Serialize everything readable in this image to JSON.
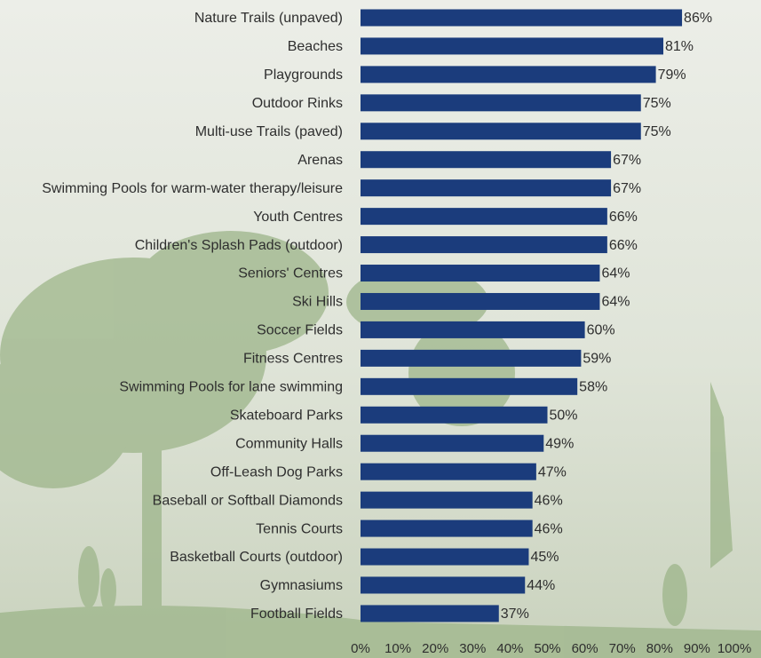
{
  "chart_data": {
    "type": "bar",
    "categories": [
      "Nature Trails (unpaved)",
      "Beaches",
      "Playgrounds",
      "Outdoor Rinks",
      "Multi-use Trails (paved)",
      "Arenas",
      "Swimming Pools for warm-water therapy/leisure",
      "Youth Centres",
      "Children's Splash Pads (outdoor)",
      "Seniors' Centres",
      "Ski Hills",
      "Soccer Fields",
      "Fitness Centres",
      "Swimming Pools for lane swimming",
      "Skateboard Parks",
      "Community Halls",
      "Off-Leash Dog Parks",
      "Baseball or Softball Diamonds",
      "Tennis Courts",
      "Basketball Courts (outdoor)",
      "Gymnasiums",
      "Football Fields"
    ],
    "values": [
      86,
      81,
      79,
      75,
      75,
      67,
      67,
      66,
      66,
      64,
      64,
      60,
      59,
      58,
      50,
      49,
      47,
      46,
      46,
      45,
      44,
      37
    ],
    "value_labels": [
      "86%",
      "81%",
      "79%",
      "75%",
      "75%",
      "67%",
      "67%",
      "66%",
      "66%",
      "64%",
      "64%",
      "60%",
      "59%",
      "58%",
      "50%",
      "49%",
      "47%",
      "46%",
      "46%",
      "45%",
      "44%",
      "37%"
    ],
    "color": "#1b3c7c",
    "xlim": [
      0,
      100
    ],
    "xticks": [
      {
        "value": 0,
        "label": "0%"
      },
      {
        "value": 10,
        "label": "10%"
      },
      {
        "value": 20,
        "label": "20%"
      },
      {
        "value": 30,
        "label": "30%"
      },
      {
        "value": 40,
        "label": "40%"
      },
      {
        "value": 50,
        "label": "50%"
      },
      {
        "value": 60,
        "label": "60%"
      },
      {
        "value": 70,
        "label": "70%"
      },
      {
        "value": 80,
        "label": "80%"
      },
      {
        "value": 90,
        "label": "90%"
      },
      {
        "value": 100,
        "label": "100%"
      }
    ]
  }
}
